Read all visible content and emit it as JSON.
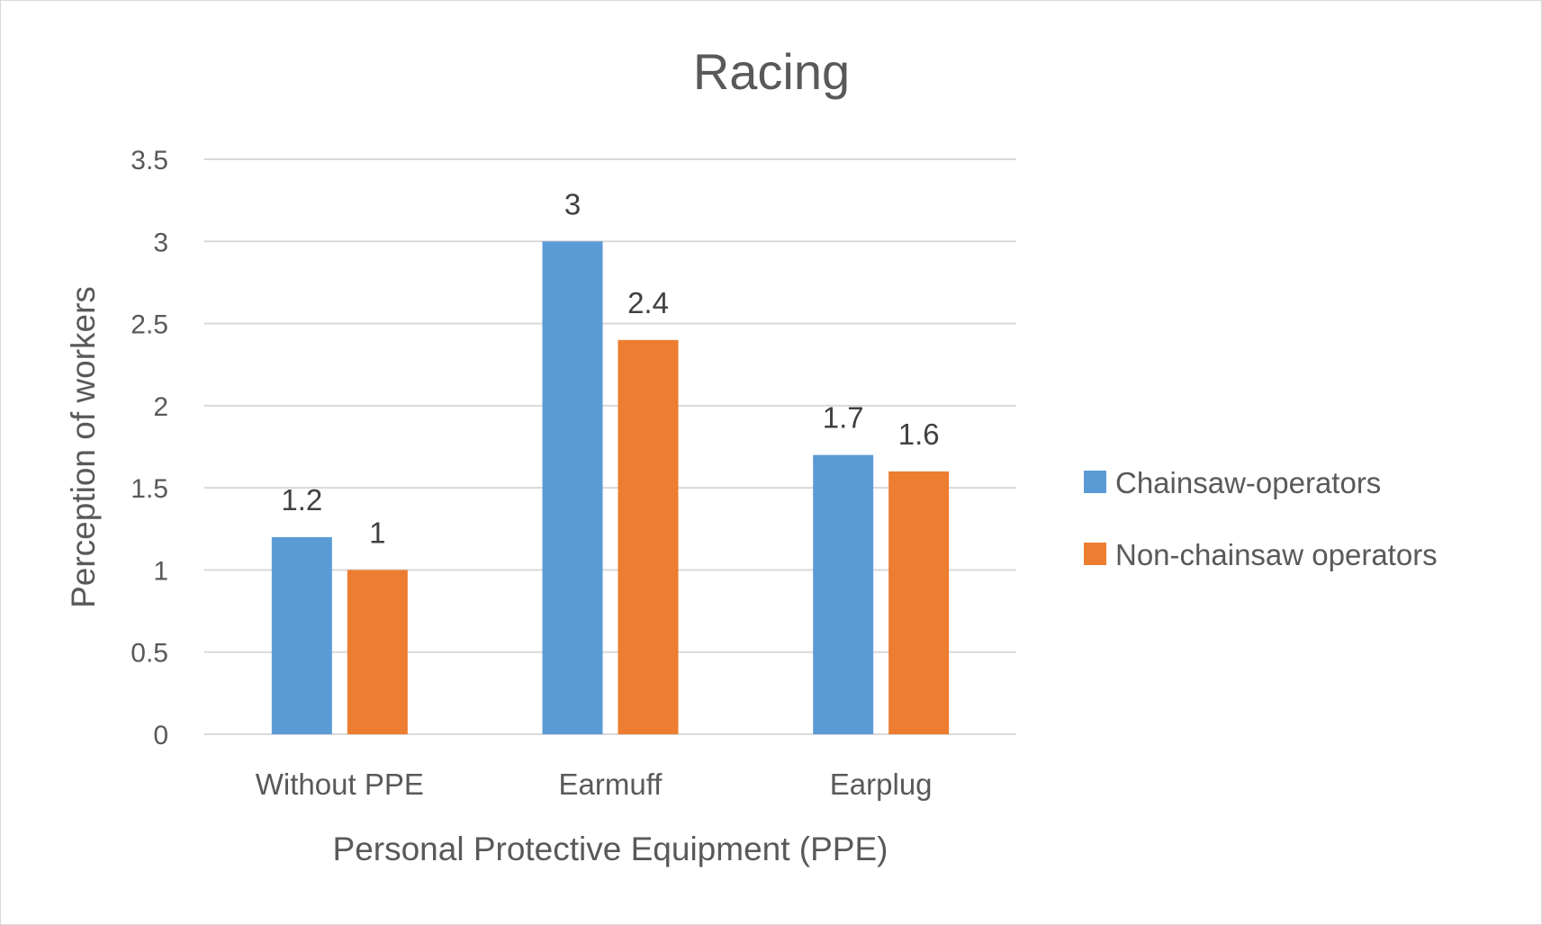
{
  "chart_data": {
    "type": "bar",
    "title": "Racing",
    "xlabel": "Personal Protective Equipment (PPE)",
    "ylabel": "Perception of workers",
    "categories": [
      "Without PPE",
      "Earmuff",
      "Earplug"
    ],
    "series": [
      {
        "name": "Chainsaw-operators",
        "color": "#5b9bd5",
        "values": [
          1.2,
          3,
          1.7
        ],
        "labels": [
          "1.2",
          "3",
          "1.7"
        ]
      },
      {
        "name": "Non-chainsaw operators",
        "color": "#ed7d31",
        "values": [
          1,
          2.4,
          1.6
        ],
        "labels": [
          "1",
          "2.4",
          "1.6"
        ]
      }
    ],
    "ylim": [
      0,
      3.5
    ],
    "yticks": [
      0,
      0.5,
      1,
      1.5,
      2,
      2.5,
      3,
      3.5
    ],
    "ytick_labels": [
      "0",
      "0.5",
      "1",
      "1.5",
      "2",
      "2.5",
      "3",
      "3.5"
    ],
    "grid": true,
    "legend": "right"
  }
}
